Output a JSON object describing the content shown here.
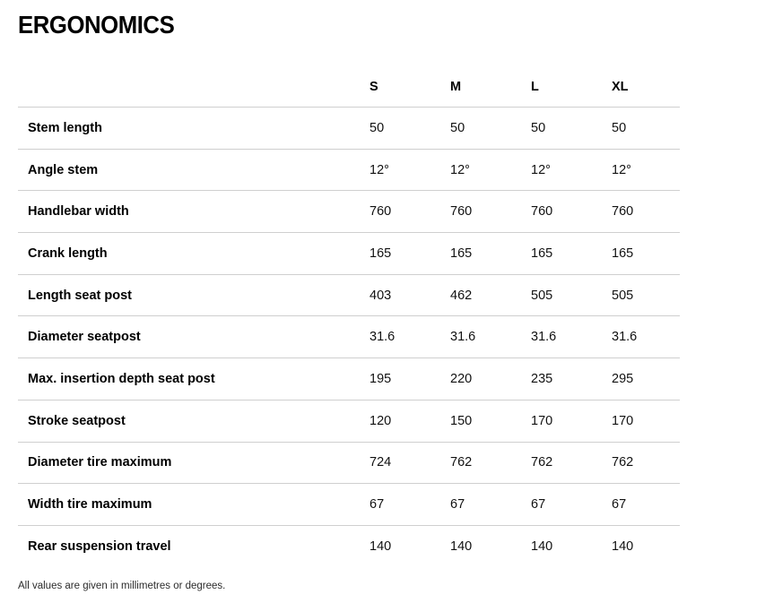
{
  "page": {
    "title": "ERGONOMICS",
    "footnote": "All values are given in millimetres or degrees."
  },
  "colors": {
    "text": "#000000",
    "divider": "#cfcfcf",
    "background": "#ffffff"
  },
  "table": {
    "columns": [
      "S",
      "M",
      "L",
      "XL"
    ],
    "rows": [
      {
        "label": "Stem length",
        "values": [
          "50",
          "50",
          "50",
          "50"
        ]
      },
      {
        "label": "Angle stem",
        "values": [
          "12°",
          "12°",
          "12°",
          "12°"
        ]
      },
      {
        "label": "Handlebar width",
        "values": [
          "760",
          "760",
          "760",
          "760"
        ]
      },
      {
        "label": "Crank length",
        "values": [
          "165",
          "165",
          "165",
          "165"
        ]
      },
      {
        "label": "Length seat post",
        "values": [
          "403",
          "462",
          "505",
          "505"
        ]
      },
      {
        "label": "Diameter seatpost",
        "values": [
          "31.6",
          "31.6",
          "31.6",
          "31.6"
        ]
      },
      {
        "label": "Max. insertion depth seat post",
        "values": [
          "195",
          "220",
          "235",
          "295"
        ]
      },
      {
        "label": "Stroke seatpost",
        "values": [
          "120",
          "150",
          "170",
          "170"
        ]
      },
      {
        "label": "Diameter tire maximum",
        "values": [
          "724",
          "762",
          "762",
          "762"
        ]
      },
      {
        "label": "Width tire maximum",
        "values": [
          "67",
          "67",
          "67",
          "67"
        ]
      },
      {
        "label": "Rear suspension travel",
        "values": [
          "140",
          "140",
          "140",
          "140"
        ]
      }
    ]
  }
}
